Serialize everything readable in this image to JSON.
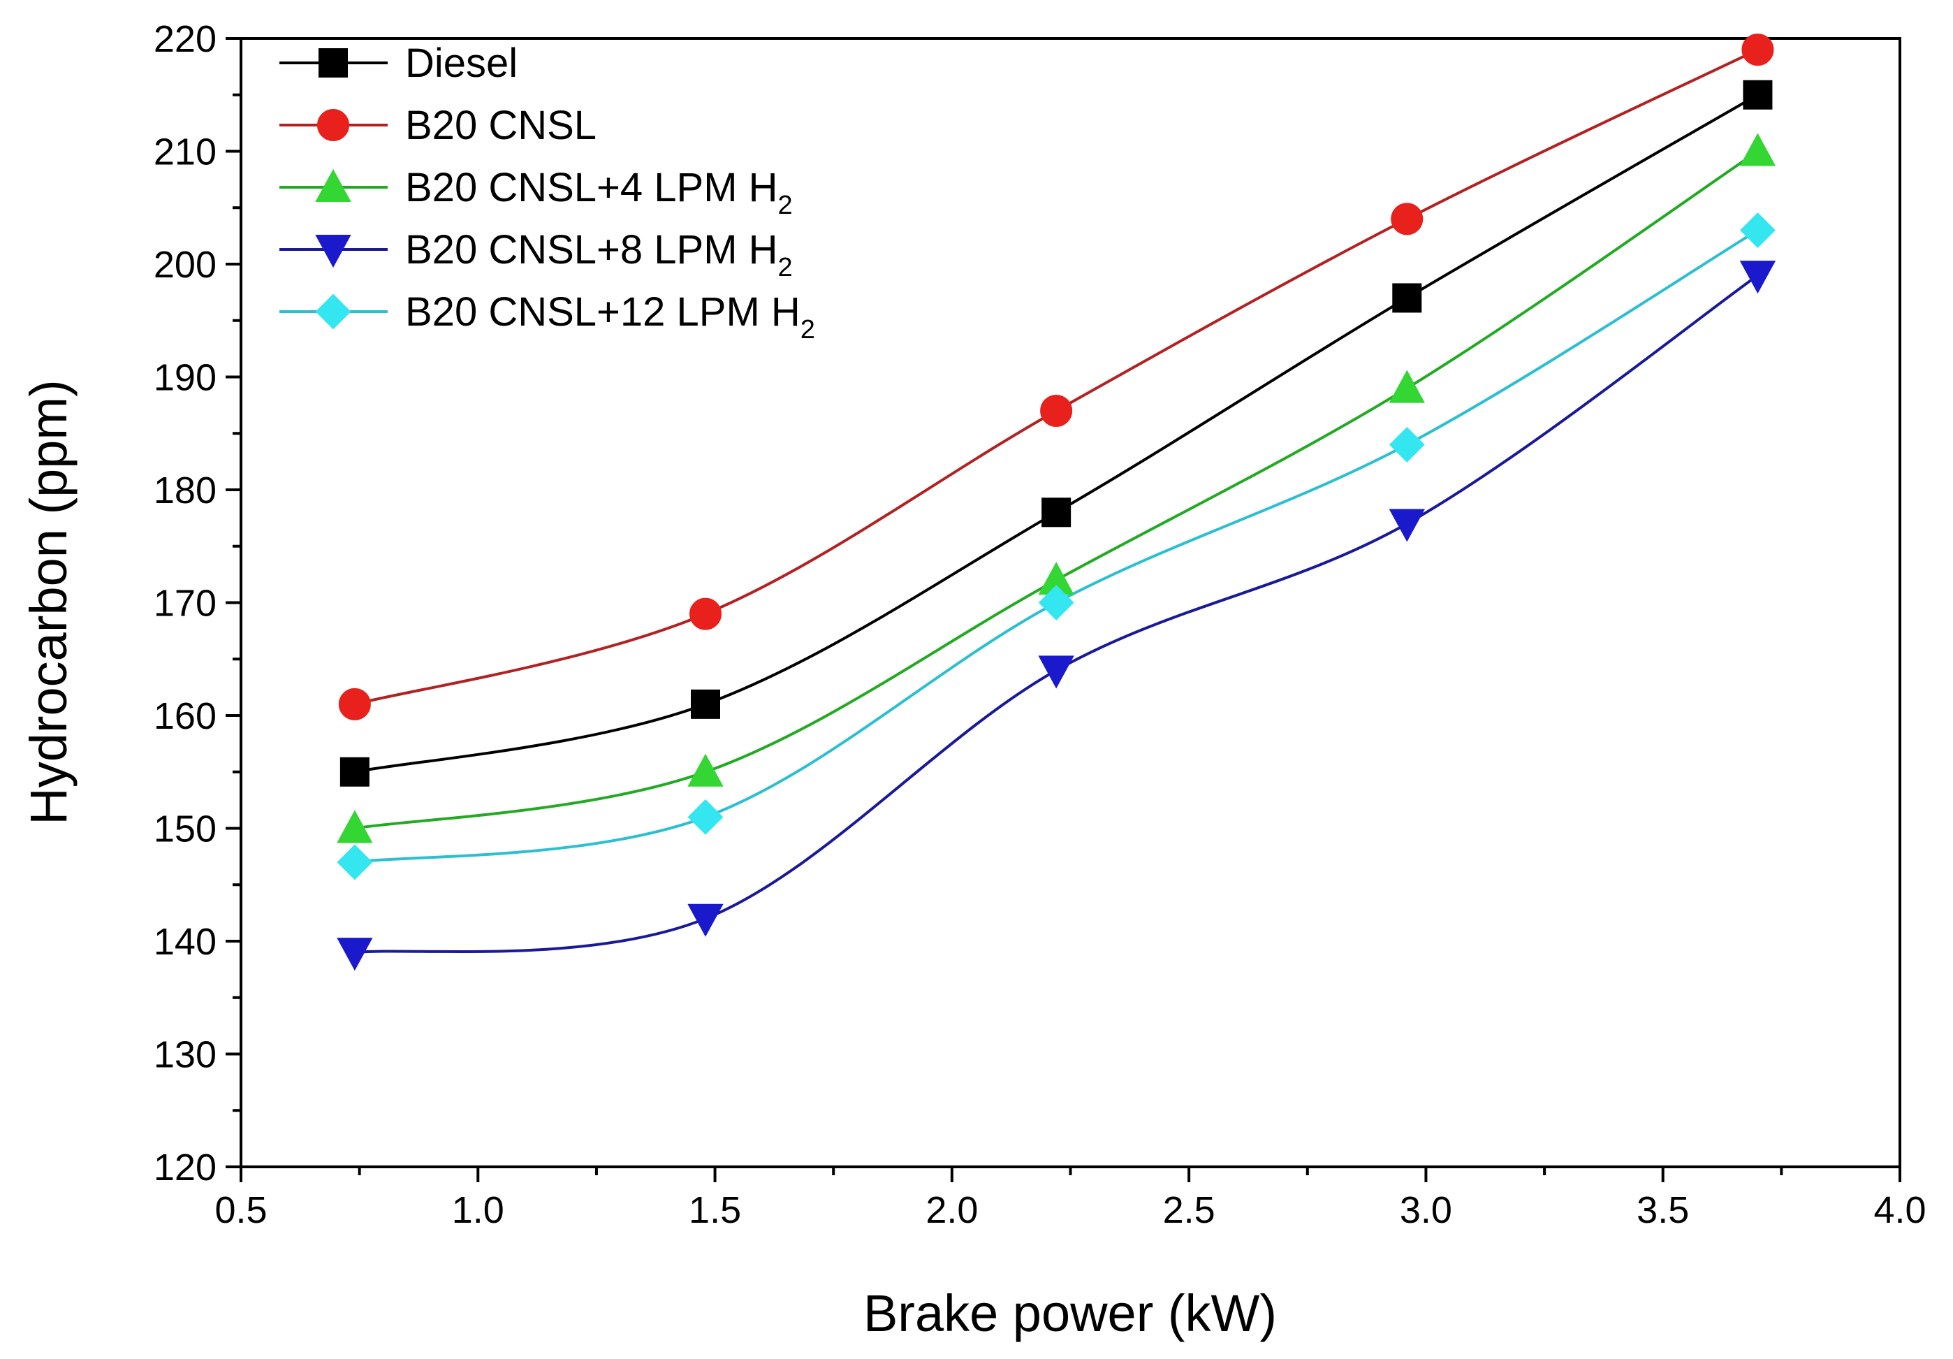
{
  "chart_data": {
    "type": "line",
    "title": "",
    "xlabel": "Brake power (kW)",
    "ylabel": "Hydrocarbon (ppm)",
    "xlim": [
      0.5,
      4.0
    ],
    "ylim": [
      120,
      220
    ],
    "x_ticks": [
      0.5,
      1.0,
      1.5,
      2.0,
      2.5,
      3.0,
      3.5,
      4.0
    ],
    "y_ticks": [
      120,
      130,
      140,
      150,
      160,
      170,
      180,
      190,
      200,
      210,
      220
    ],
    "x_tick_labels": [
      "0.5",
      "1.0",
      "1.5",
      "2.0",
      "2.5",
      "3.0",
      "3.5",
      "4.0"
    ],
    "y_tick_labels": [
      "120",
      "130",
      "140",
      "150",
      "160",
      "170",
      "180",
      "190",
      "200",
      "210",
      "220"
    ],
    "grid": false,
    "legend_position": "top-left",
    "x": [
      0.74,
      1.48,
      2.22,
      2.96,
      3.7
    ],
    "series": [
      {
        "name": "Diesel",
        "label_main": "Diesel",
        "label_sub": "",
        "color": "#000000",
        "marker": "square",
        "values": [
          155,
          161,
          178,
          197,
          215
        ]
      },
      {
        "name": "B20 CNSL",
        "label_main": "B20 CNSL",
        "label_sub": "",
        "color": "#e8211c",
        "line_color": "#b22222",
        "marker": "circle",
        "values": [
          161,
          169,
          187,
          204,
          219
        ]
      },
      {
        "name": "B20 CNSL+4 LPM H2",
        "label_main": "B20 CNSL+4 LPM H",
        "label_sub": "2",
        "color": "#33d633",
        "line_color": "#22aa22",
        "marker": "triangle-up",
        "values": [
          150,
          155,
          172,
          189,
          210
        ]
      },
      {
        "name": "B20 CNSL+8 LPM H2",
        "label_main": "B20 CNSL+8 LPM H",
        "label_sub": "2",
        "color": "#1a1acc",
        "line_color": "#1a1a99",
        "marker": "triangle-down",
        "values": [
          139,
          142,
          164,
          177,
          199
        ]
      },
      {
        "name": "B20 CNSL+12 LPM H2",
        "label_main": "B20 CNSL+12 LPM H",
        "label_sub": "2",
        "color": "#33e6f0",
        "line_color": "#2bbfd1",
        "marker": "diamond",
        "values": [
          147,
          151,
          170,
          184,
          203
        ]
      }
    ]
  }
}
